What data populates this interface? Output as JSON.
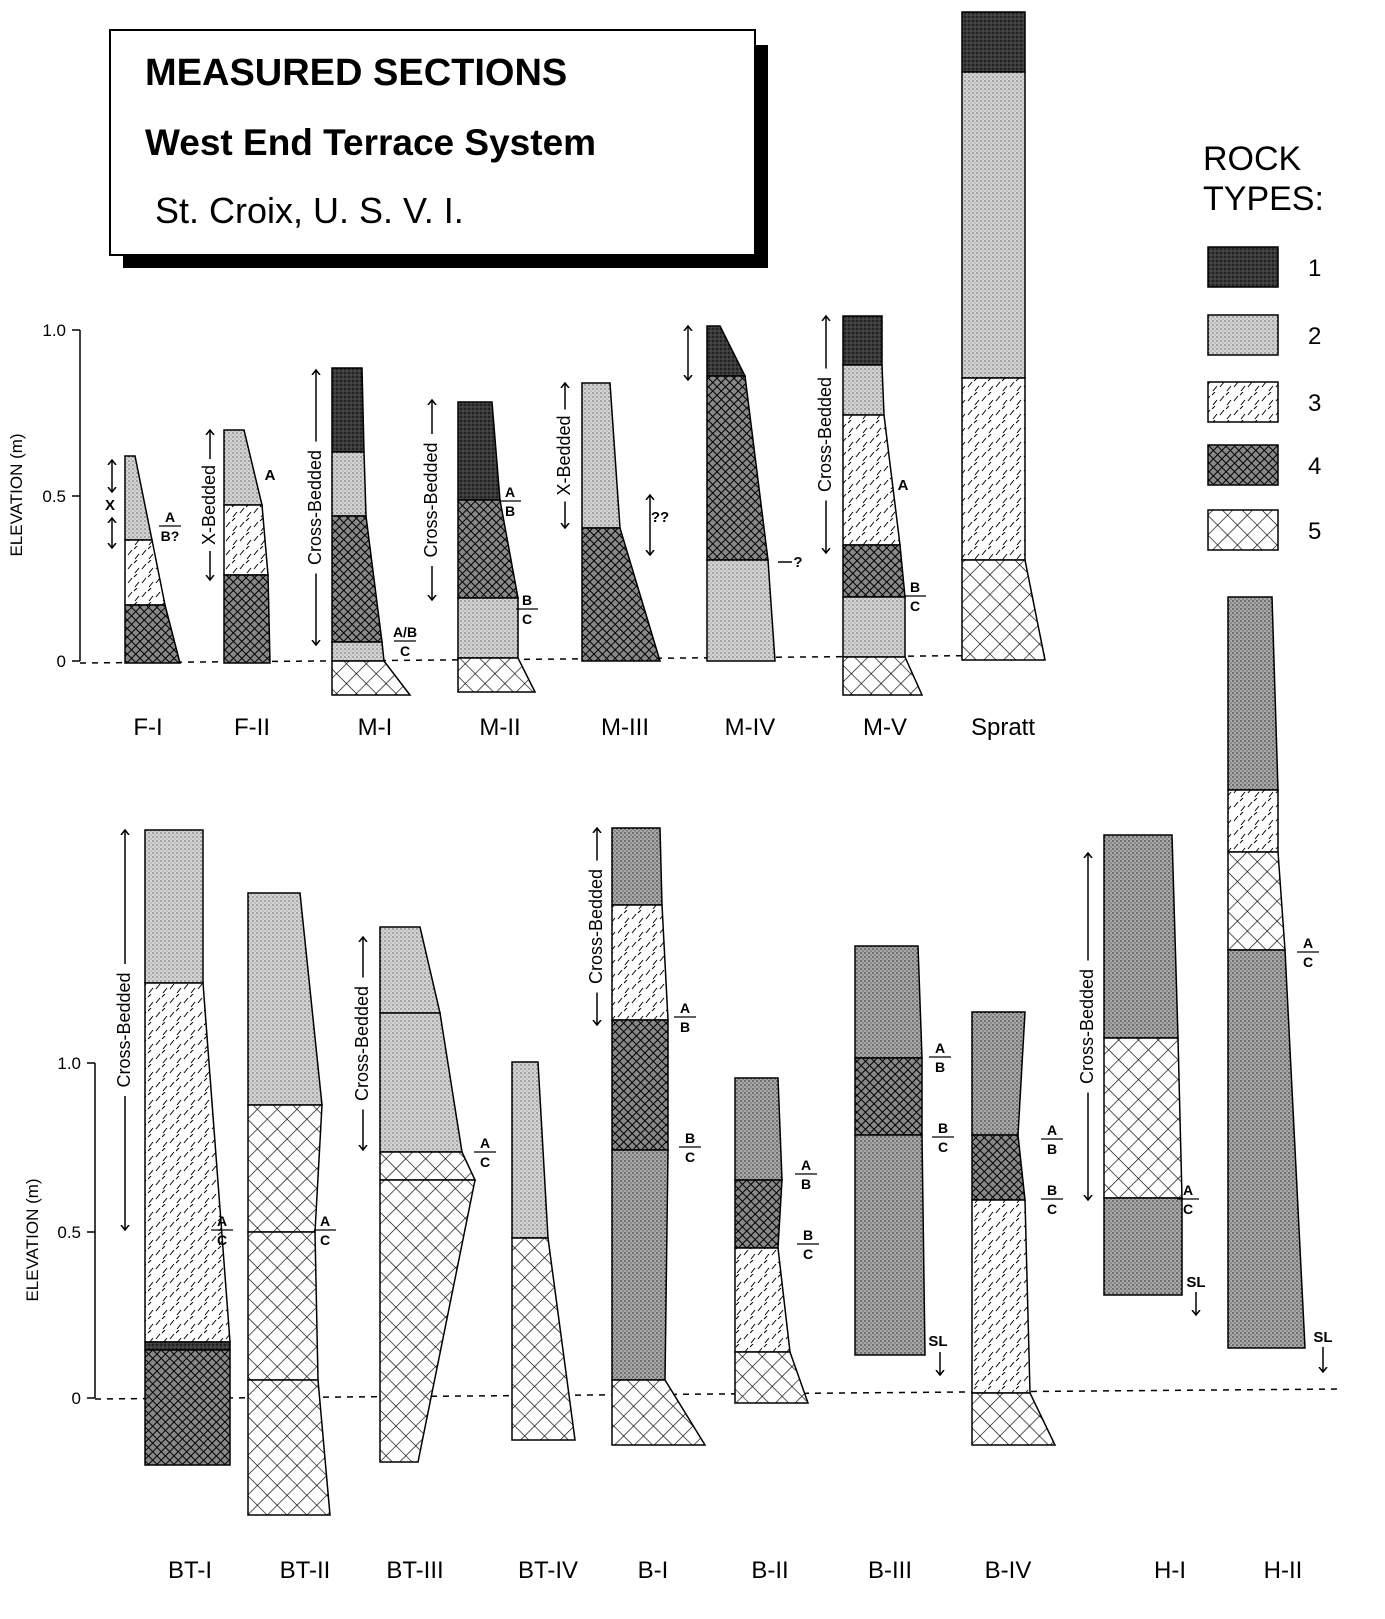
{
  "header": {
    "title": "MEASURED SECTIONS",
    "subtitle": "West End Terrace System",
    "location": "St. Croix, U. S. V. I."
  },
  "legend": {
    "title": [
      "ROCK",
      "TYPES:"
    ],
    "items": [
      "1",
      "2",
      "3",
      "4",
      "5"
    ]
  },
  "panels": [
    {
      "y_axis_label": "ELEVATION (m)",
      "yticks": [
        "1.0",
        "0.5",
        "0"
      ],
      "sections": [
        {
          "name": "F-I",
          "notes": [
            "X"
          ],
          "contacts": [
            [
              "A",
              "B?"
            ]
          ]
        },
        {
          "name": "F-II",
          "bedding": "X-Bedded",
          "notes": [
            "A"
          ]
        },
        {
          "name": "M-I",
          "bedding": "Cross-Bedded",
          "contacts": [
            [
              "A/B",
              "C"
            ]
          ]
        },
        {
          "name": "M-II",
          "bedding": "Cross-Bedded",
          "contacts": [
            [
              "A",
              "B"
            ],
            [
              "B",
              "C"
            ]
          ]
        },
        {
          "name": "M-III",
          "bedding": "X-Bedded",
          "notes": [
            "??"
          ]
        },
        {
          "name": "M-IV",
          "notes": [
            "?"
          ]
        },
        {
          "name": "M-V",
          "bedding": "Cross-Bedded",
          "notes": [
            "A"
          ],
          "contacts": [
            [
              "B",
              "C"
            ]
          ]
        },
        {
          "name": "Spratt"
        }
      ]
    },
    {
      "y_axis_label": "ELEVATION (m)",
      "yticks": [
        "1.0",
        "0.5",
        "0"
      ],
      "sections": [
        {
          "name": "BT-I",
          "bedding": "Cross-Bedded",
          "contacts": [
            [
              "A",
              "C"
            ]
          ]
        },
        {
          "name": "BT-II",
          "contacts": [
            [
              "A",
              "C"
            ]
          ]
        },
        {
          "name": "BT-III",
          "bedding": "Cross-Bedded",
          "contacts": [
            [
              "A",
              "C"
            ]
          ]
        },
        {
          "name": "BT-IV"
        },
        {
          "name": "B-I",
          "bedding": "Cross-Bedded",
          "contacts": [
            [
              "A",
              "B"
            ],
            [
              "B",
              "C"
            ]
          ]
        },
        {
          "name": "B-II",
          "contacts": [
            [
              "A",
              "B"
            ],
            [
              "B",
              "C"
            ]
          ]
        },
        {
          "name": "B-III",
          "contacts": [
            [
              "A",
              "B"
            ],
            [
              "B",
              "C"
            ]
          ],
          "notes": [
            "SL"
          ]
        },
        {
          "name": "B-IV",
          "contacts": [
            [
              "A",
              "B"
            ],
            [
              "B",
              "C"
            ]
          ]
        },
        {
          "name": "H-I",
          "bedding": "Cross-Bedded",
          "contacts": [
            [
              "A",
              "C"
            ]
          ],
          "notes": [
            "SL"
          ]
        },
        {
          "name": "H-II",
          "contacts": [
            [
              "A",
              "C"
            ]
          ],
          "notes": [
            "SL"
          ]
        }
      ]
    }
  ]
}
